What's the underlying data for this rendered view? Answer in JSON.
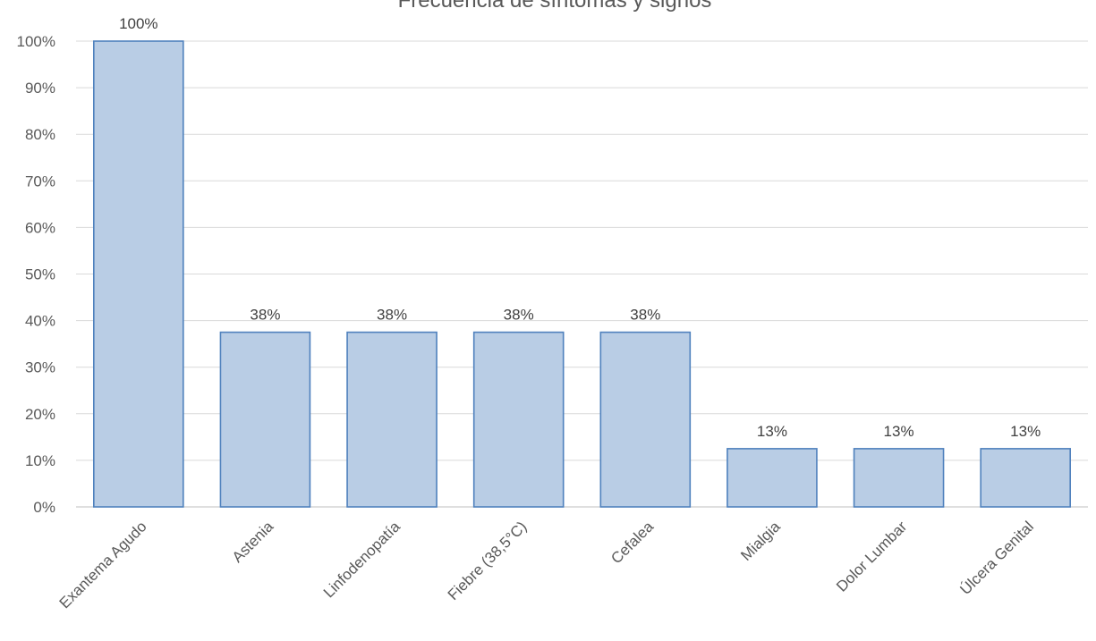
{
  "chart_data": {
    "type": "bar",
    "title": "Frecuencia de síntomas y signos",
    "xlabel": "",
    "ylabel": "",
    "categories": [
      "Exantema Agudo",
      "Astenia",
      "Linfodenopatía",
      "Fiebre (38,5°C)",
      "Cefalea",
      "Mialgia",
      "Dolor Lumbar",
      "Úlcera Genital"
    ],
    "values": [
      100,
      37.5,
      37.5,
      37.5,
      37.5,
      12.5,
      12.5,
      12.5
    ],
    "data_labels": [
      "100%",
      "38%",
      "38%",
      "38%",
      "38%",
      "13%",
      "13%",
      "13%"
    ],
    "ylim": [
      0,
      100
    ],
    "yticks": [
      "0%",
      "10%",
      "20%",
      "30%",
      "40%",
      "50%",
      "60%",
      "70%",
      "80%",
      "90%",
      "100%"
    ],
    "grid": true,
    "legend": "none",
    "colors": {
      "bar_fill": "#b9cde5",
      "bar_stroke": "#4f81bd",
      "grid": "#d9d9d9",
      "axis": "#bfbfbf"
    }
  }
}
